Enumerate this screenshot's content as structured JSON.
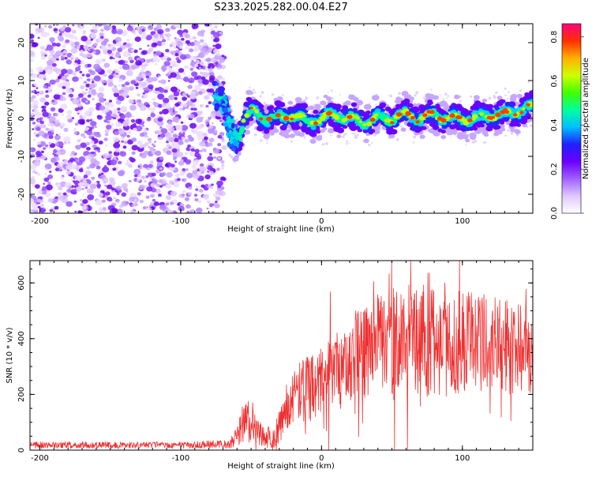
{
  "title": "S233.2025.282.00.04.E27",
  "colors": {
    "spec_low": "#d6b8ff",
    "spec_mid": "#7a1fff",
    "spec_high": "#ff1f3a",
    "snr_line": "#f03030"
  },
  "colorbar": {
    "label": "Normalized spectral amplitude",
    "ticks": [
      "0.0",
      "0.2",
      "0.4",
      "0.6",
      "0.8"
    ],
    "tick_values": [
      0.0,
      0.2,
      0.4,
      0.6,
      0.8
    ],
    "range": [
      0.0,
      0.86
    ],
    "stops": [
      "#ffffff",
      "#e0c8ff",
      "#a060ff",
      "#6a00ff",
      "#2020ff",
      "#00c0ff",
      "#00ffa0",
      "#40ff00",
      "#d0ff00",
      "#ffb000",
      "#ff3000",
      "#ff0080"
    ]
  },
  "chart_data": [
    {
      "type": "heatmap",
      "name": "spectrogram",
      "xlabel": "Height of straight line (km)",
      "ylabel": "Frequency (Hz)",
      "xlim": [
        -207,
        150
      ],
      "ylim": [
        -25,
        25
      ],
      "x_ticks": [
        -200,
        -100,
        0,
        100
      ],
      "x_tick_labels": [
        "-200",
        "-100",
        "0",
        "100"
      ],
      "y_ticks": [
        -20,
        -10,
        0,
        10,
        20
      ],
      "y_tick_labels": [
        "-20",
        "-10",
        "0",
        "10",
        "20"
      ],
      "noise_region_km": [
        -207,
        -75
      ],
      "signal_onset_km": -75,
      "ridge": {
        "x_km": [
          -75,
          -70,
          -65,
          -60,
          -55,
          -50,
          -40,
          -30,
          -20,
          -10,
          0,
          10,
          20,
          30,
          40,
          50,
          60,
          70,
          80,
          90,
          100,
          110,
          120,
          130,
          140,
          150
        ],
        "freq_hz": [
          6,
          5,
          -3,
          -6,
          0,
          2,
          0,
          0,
          1,
          -1,
          0,
          1,
          0,
          -1,
          0,
          0,
          1,
          0,
          1,
          0,
          0,
          0,
          1,
          1,
          2,
          3
        ]
      }
    },
    {
      "type": "line",
      "name": "snr",
      "xlabel": "Height of straight line (km)",
      "ylabel": "SNR (10 * v/v)",
      "xlim": [
        -207,
        150
      ],
      "ylim": [
        0,
        680
      ],
      "x_ticks": [
        -200,
        -100,
        0,
        100
      ],
      "x_tick_labels": [
        "-200",
        "-100",
        "0",
        "100"
      ],
      "y_ticks": [
        0,
        200,
        400,
        600
      ],
      "y_tick_labels": [
        "0",
        "200",
        "400",
        "600"
      ],
      "envelope": {
        "x_km": [
          -207,
          -100,
          -65,
          -60,
          -55,
          -50,
          -45,
          -40,
          -35,
          -30,
          -25,
          -20,
          -10,
          0,
          10,
          20,
          40,
          60,
          80,
          100,
          120,
          150
        ],
        "mean": [
          18,
          18,
          22,
          50,
          90,
          110,
          70,
          50,
          40,
          80,
          160,
          200,
          220,
          240,
          270,
          330,
          380,
          400,
          390,
          380,
          380,
          370
        ],
        "spread": [
          12,
          12,
          15,
          40,
          70,
          80,
          50,
          40,
          40,
          60,
          90,
          100,
          120,
          130,
          140,
          160,
          180,
          200,
          200,
          190,
          180,
          170
        ]
      }
    }
  ]
}
